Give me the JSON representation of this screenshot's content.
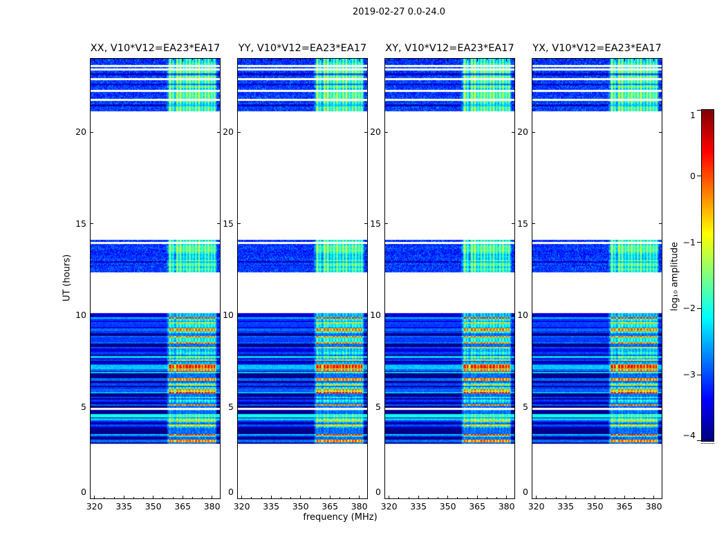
{
  "chart_data": {
    "type": "heatmap",
    "title": "2019-02-27 0.0-24.0",
    "panels": [
      {
        "title": "XX, V10*V12=EA23*EA17"
      },
      {
        "title": "YY, V10*V12=EA23*EA17"
      },
      {
        "title": "XY, V10*V12=EA23*EA17"
      },
      {
        "title": "YX, V10*V12=EA23*EA17"
      }
    ],
    "x_axis": {
      "label": "frequency (MHz)",
      "range": [
        318,
        384
      ],
      "ticks": [
        320,
        335,
        350,
        365,
        380
      ],
      "minor_step": 5
    },
    "y_axis": {
      "label": "UT (hours)",
      "range": [
        0,
        24
      ],
      "ticks": [
        0,
        5,
        10,
        15,
        20
      ]
    },
    "colorbar": {
      "label": "log₁₀ amplitude",
      "range_min": -4,
      "range_max": 1,
      "ticks": [
        1,
        0,
        -1,
        -2,
        -3,
        -4
      ],
      "colormap": "jet"
    },
    "colors": {
      "background": "#ffffff",
      "frame": "#000000",
      "low": "#000080",
      "high": "#800000"
    },
    "rfi": {
      "band_start_mhz": 356.5,
      "band_end_mhz": 382.5,
      "line_freqs": [
        358.6,
        360.1,
        362.3,
        363.9,
        365.5,
        367.1,
        368.7,
        370.2,
        371.8,
        373.4,
        375.0,
        376.6,
        378.2,
        379.8,
        381.3
      ]
    },
    "time_bands": [
      {
        "kind": "noise",
        "t_start": 21.15,
        "t_end": 24.0,
        "base": -3.35,
        "stripe_gain": 1.9,
        "white_lines": [
          23.62,
          23.4,
          22.9,
          22.26,
          21.77
        ],
        "dark_lines": [
          23.15,
          22.6,
          21.45
        ]
      },
      {
        "kind": "noise",
        "t_start": 12.35,
        "t_end": 14.12,
        "base": -3.4,
        "stripe_gain": 1.7,
        "white_lines": [
          13.95
        ],
        "dark_lines": [
          12.9
        ]
      },
      {
        "kind": "striped",
        "t_start": 3.0,
        "t_end": 10.1,
        "row_height": 0.085,
        "specials": [
          {
            "t0": 3.0,
            "t1": 3.05,
            "type": "black"
          },
          {
            "t0": 3.05,
            "t1": 3.22,
            "type": "bright"
          },
          {
            "t0": 4.42,
            "t1": 4.62,
            "type": "cyanwide"
          },
          {
            "t0": 4.83,
            "t1": 4.95,
            "type": "white"
          },
          {
            "t0": 5.88,
            "t1": 5.98,
            "type": "bright"
          },
          {
            "t0": 6.95,
            "t1": 7.05,
            "type": "bright"
          },
          {
            "t0": 7.14,
            "t1": 7.3,
            "type": "hot"
          }
        ]
      }
    ],
    "seed": 7
  }
}
